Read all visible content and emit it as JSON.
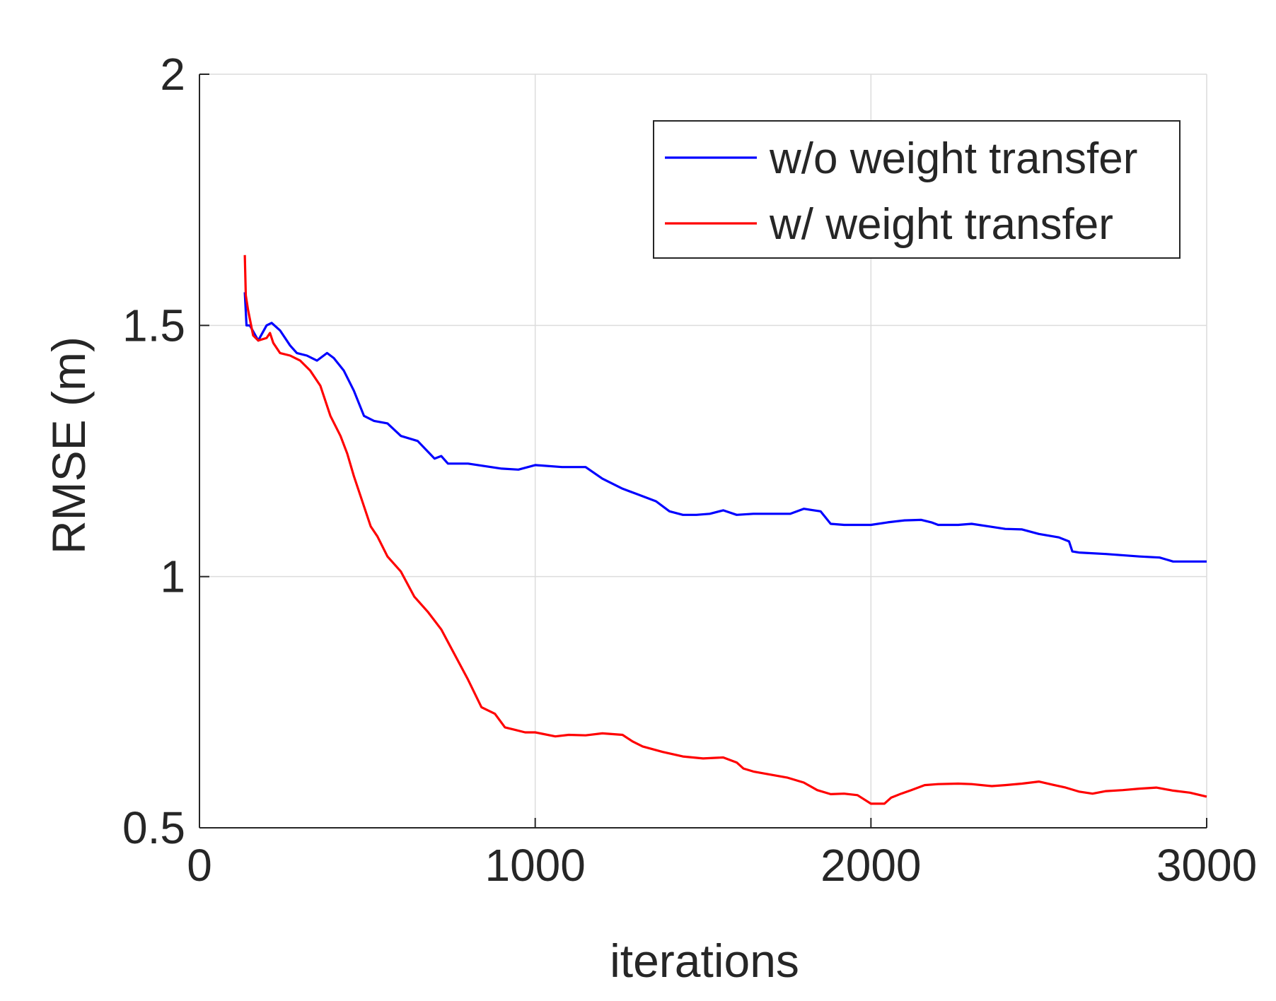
{
  "chart_data": {
    "type": "line",
    "title": "",
    "xlabel": "iterations",
    "ylabel": "RMSE (m)",
    "xlim": [
      0,
      3000
    ],
    "ylim": [
      0.5,
      2
    ],
    "xticks": [
      0,
      1000,
      2000,
      3000
    ],
    "xtick_labels": [
      "0",
      "1000",
      "2000",
      "3000"
    ],
    "yticks": [
      0.5,
      1,
      1.5,
      2
    ],
    "ytick_labels": [
      "0.5",
      "1",
      "1.5",
      "2"
    ],
    "grid": true,
    "legend_position": "top-right",
    "series": [
      {
        "name": "w/o weight transfer",
        "color": "#0000ff",
        "x": [
          135,
          140,
          150,
          175,
          200,
          215,
          240,
          270,
          290,
          320,
          350,
          380,
          400,
          430,
          460,
          490,
          520,
          560,
          600,
          650,
          700,
          720,
          740,
          800,
          900,
          950,
          1000,
          1080,
          1150,
          1200,
          1260,
          1300,
          1360,
          1400,
          1440,
          1480,
          1520,
          1560,
          1600,
          1650,
          1700,
          1760,
          1800,
          1850,
          1880,
          1920,
          2000,
          2050,
          2100,
          2150,
          2180,
          2200,
          2260,
          2300,
          2350,
          2400,
          2450,
          2500,
          2560,
          2590,
          2600,
          2620,
          2700,
          2800,
          2860,
          2900,
          2950,
          3000
        ],
        "y": [
          1.566,
          1.5,
          1.5,
          1.47,
          1.5,
          1.505,
          1.49,
          1.46,
          1.445,
          1.44,
          1.43,
          1.445,
          1.435,
          1.41,
          1.37,
          1.32,
          1.31,
          1.305,
          1.28,
          1.27,
          1.235,
          1.24,
          1.225,
          1.225,
          1.215,
          1.213,
          1.222,
          1.218,
          1.218,
          1.195,
          1.175,
          1.165,
          1.15,
          1.13,
          1.123,
          1.123,
          1.125,
          1.132,
          1.123,
          1.125,
          1.125,
          1.125,
          1.135,
          1.13,
          1.105,
          1.103,
          1.103,
          1.108,
          1.112,
          1.113,
          1.108,
          1.103,
          1.103,
          1.105,
          1.1,
          1.095,
          1.094,
          1.085,
          1.078,
          1.07,
          1.05,
          1.048,
          1.045,
          1.04,
          1.038,
          1.03,
          1.03,
          1.03
        ]
      },
      {
        "name": "w/ weight transfer",
        "color": "#ff0000",
        "x": [
          135,
          138,
          145,
          160,
          175,
          200,
          210,
          220,
          240,
          270,
          300,
          330,
          360,
          390,
          420,
          440,
          460,
          490,
          510,
          530,
          560,
          600,
          640,
          680,
          720,
          760,
          800,
          840,
          880,
          910,
          940,
          970,
          1000,
          1060,
          1100,
          1150,
          1200,
          1260,
          1290,
          1320,
          1380,
          1440,
          1500,
          1560,
          1600,
          1620,
          1650,
          1700,
          1750,
          1800,
          1840,
          1880,
          1920,
          1960,
          2000,
          2040,
          2060,
          2090,
          2120,
          2160,
          2200,
          2260,
          2300,
          2360,
          2400,
          2450,
          2500,
          2540,
          2580,
          2620,
          2660,
          2700,
          2750,
          2800,
          2850,
          2900,
          2950,
          3000
        ],
        "y": [
          1.64,
          1.56,
          1.53,
          1.48,
          1.47,
          1.475,
          1.485,
          1.465,
          1.445,
          1.44,
          1.43,
          1.41,
          1.38,
          1.32,
          1.28,
          1.245,
          1.2,
          1.14,
          1.1,
          1.08,
          1.04,
          1.01,
          0.96,
          0.93,
          0.895,
          0.845,
          0.795,
          0.74,
          0.727,
          0.7,
          0.695,
          0.69,
          0.69,
          0.682,
          0.685,
          0.684,
          0.688,
          0.685,
          0.672,
          0.662,
          0.651,
          0.642,
          0.638,
          0.64,
          0.63,
          0.618,
          0.612,
          0.606,
          0.6,
          0.59,
          0.575,
          0.567,
          0.568,
          0.565,
          0.548,
          0.548,
          0.56,
          0.568,
          0.575,
          0.585,
          0.587,
          0.588,
          0.587,
          0.583,
          0.585,
          0.588,
          0.592,
          0.586,
          0.58,
          0.572,
          0.568,
          0.573,
          0.575,
          0.578,
          0.58,
          0.574,
          0.57,
          0.562
        ]
      }
    ]
  }
}
